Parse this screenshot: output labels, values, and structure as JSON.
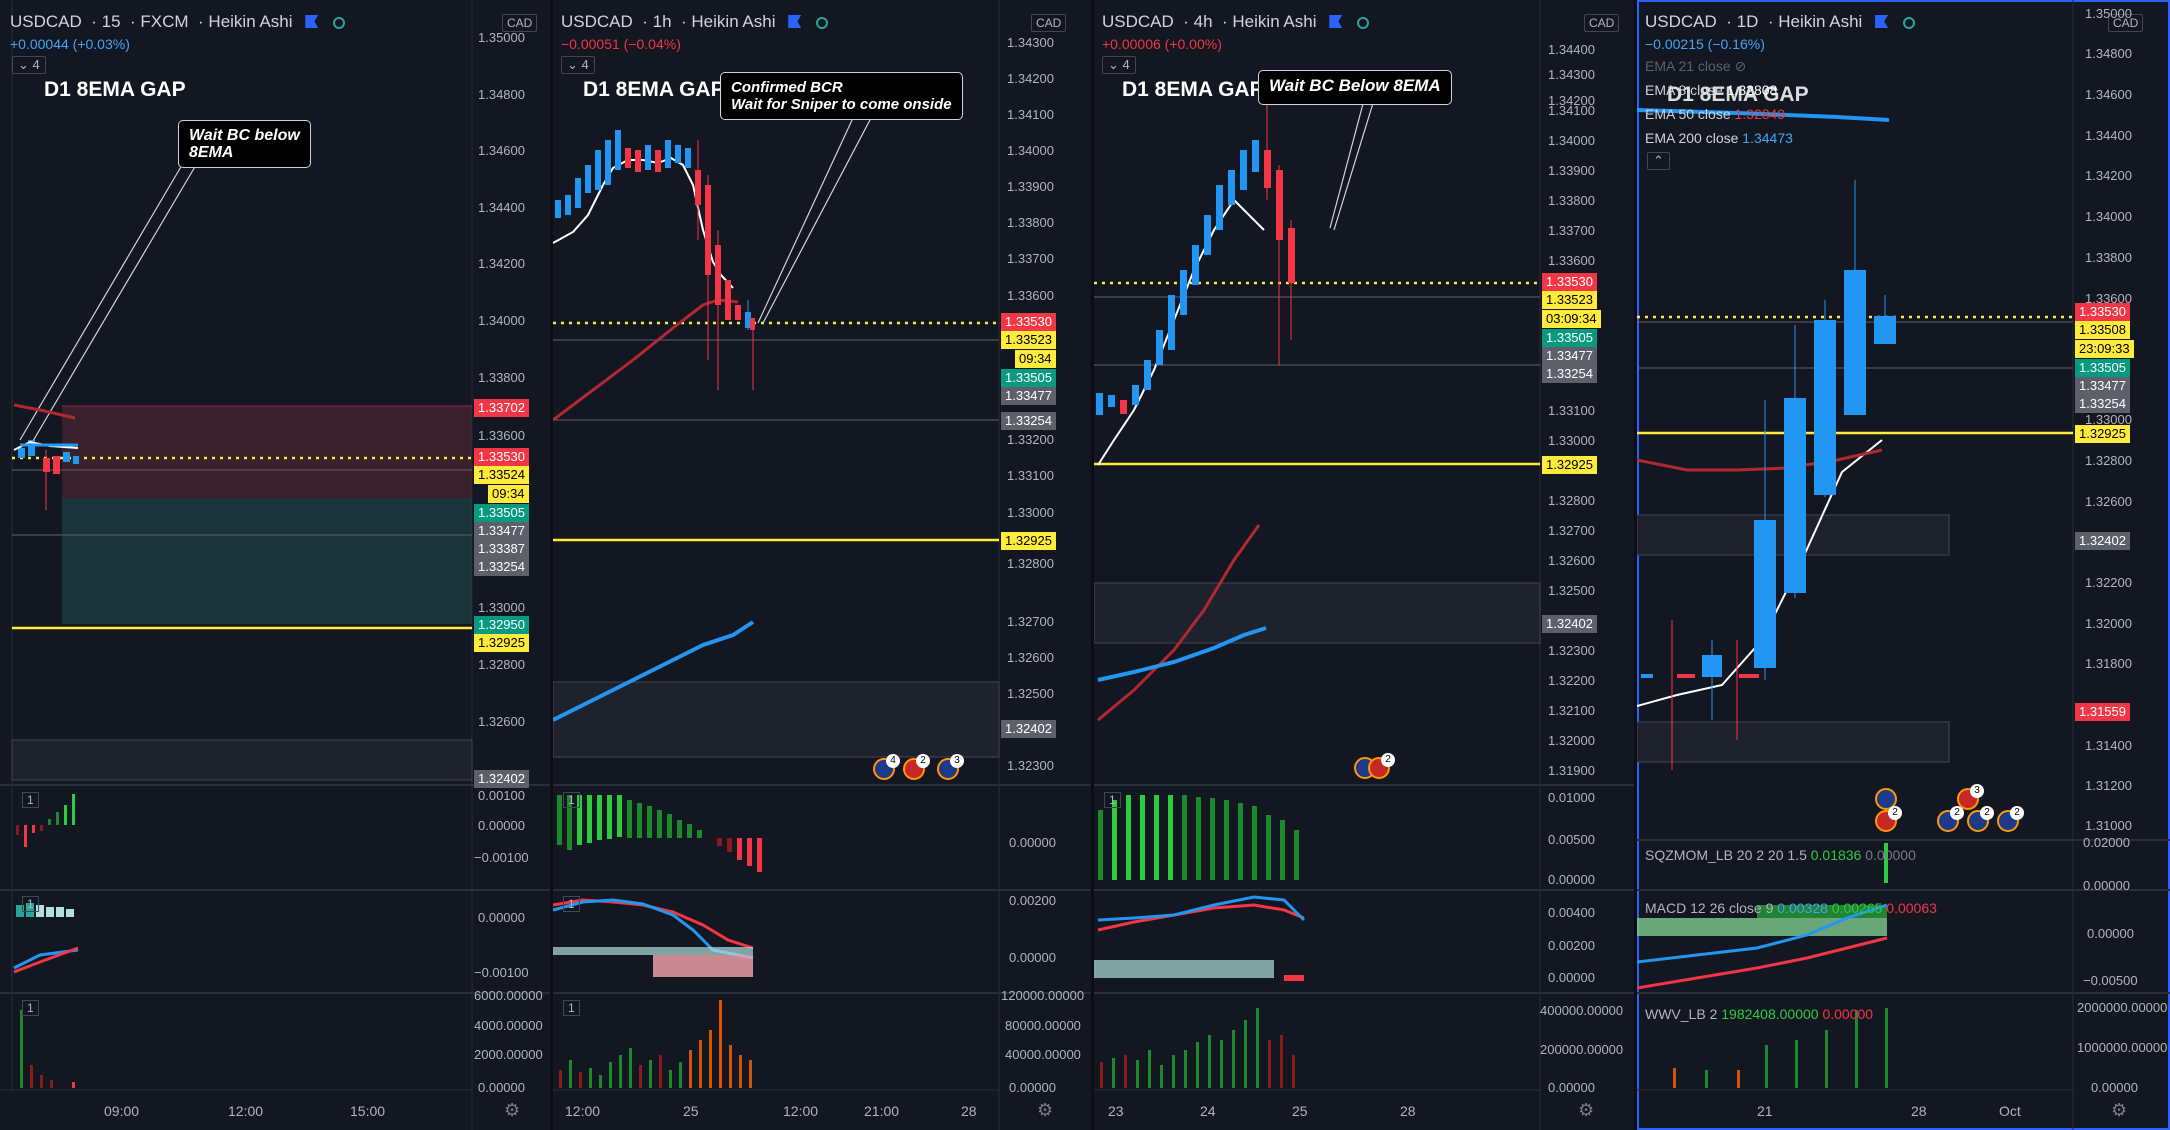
{
  "panels": [
    {
      "symbol": "USDCAD",
      "interval": "15",
      "source": "FXCM",
      "chart_type": "Heikin Ashi",
      "change": "+0.00044 (+0.03%)",
      "change_color": "#42a5f5",
      "collapse": "4",
      "gap_label": "D1  8EMA GAP",
      "callout": [
        "Wait BC below",
        "8EMA"
      ],
      "currency": "CAD",
      "price_ticks": [
        "1.35000",
        "1.34800",
        "1.34600",
        "1.34400",
        "1.34200",
        "1.34000",
        "1.33800",
        "1.33600",
        "1.33000",
        "1.32800",
        "1.32600"
      ],
      "price_labels": [
        {
          "text": "1.33702",
          "bg": "#f23645",
          "fg": "#ffffff"
        },
        {
          "text": "1.33530",
          "bg": "#f23645",
          "fg": "#ffffff"
        },
        {
          "text": "1.33524",
          "bg": "#ffeb3b",
          "fg": "#000000"
        },
        {
          "text": "09:34",
          "bg": "#ffeb3b",
          "fg": "#000000"
        },
        {
          "text": "1.33505",
          "bg": "#089981",
          "fg": "#ffffff"
        },
        {
          "text": "1.33477",
          "bg": "#5d606b",
          "fg": "#ffffff"
        },
        {
          "text": "1.33387",
          "bg": "#5d606b",
          "fg": "#ffffff"
        },
        {
          "text": "1.33254",
          "bg": "#5d606b",
          "fg": "#ffffff"
        },
        {
          "text": "1.32950",
          "bg": "#089981",
          "fg": "#ffffff"
        },
        {
          "text": "1.32925",
          "bg": "#ffeb3b",
          "fg": "#000000"
        },
        {
          "text": "1.32402",
          "bg": "#5d606b",
          "fg": "#ffffff"
        }
      ],
      "pane_ticks": [
        [
          "0.00100",
          "0.00000",
          "−0.00100"
        ],
        [
          "0.00000",
          "−0.00100"
        ],
        [
          "6000.00000",
          "4000.00000",
          "2000.00000",
          "0.00000"
        ]
      ],
      "time_labels": [
        "09:00",
        "12:00",
        "15:00"
      ]
    },
    {
      "symbol": "USDCAD",
      "interval": "1h",
      "chart_type": "Heikin Ashi",
      "change": "−0.00051 (−0.04%)",
      "change_color": "#f23645",
      "collapse": "4",
      "gap_label": "D1  8EMA GAP",
      "callout": [
        "Confirmed BCR",
        "Wait for Sniper to come onside"
      ],
      "currency": "CAD",
      "price_ticks": [
        "1.34300",
        "1.34200",
        "1.34100",
        "1.34000",
        "1.33900",
        "1.33800",
        "1.33700",
        "1.33600",
        "1.33200",
        "1.33100",
        "1.33000",
        "1.32800",
        "1.32700",
        "1.32600",
        "1.32500",
        "1.32300"
      ],
      "price_labels": [
        {
          "text": "1.33530",
          "bg": "#f23645",
          "fg": "#ffffff"
        },
        {
          "text": "1.33523",
          "bg": "#ffeb3b",
          "fg": "#000000"
        },
        {
          "text": "09:34",
          "bg": "#ffeb3b",
          "fg": "#000000"
        },
        {
          "text": "1.33505",
          "bg": "#089981",
          "fg": "#ffffff"
        },
        {
          "text": "1.33477",
          "bg": "#5d606b",
          "fg": "#ffffff"
        },
        {
          "text": "1.33254",
          "bg": "#5d606b",
          "fg": "#ffffff"
        },
        {
          "text": "1.32925",
          "bg": "#ffeb3b",
          "fg": "#000000"
        },
        {
          "text": "1.32402",
          "bg": "#5d606b",
          "fg": "#ffffff"
        }
      ],
      "pane_ticks": [
        [
          "0.00000"
        ],
        [
          "0.00200",
          "0.00000"
        ],
        [
          "120000.00000",
          "80000.00000",
          "40000.00000",
          "0.00000"
        ]
      ],
      "time_labels": [
        "12:00",
        "25",
        "12:00",
        "21:00",
        "28"
      ]
    },
    {
      "symbol": "USDCAD",
      "interval": "4h",
      "chart_type": "Heikin Ashi",
      "change": "+0.00006 (+0.00%)",
      "change_color": "#f23645",
      "collapse": "4",
      "gap_label": "D1  8EMA GAP",
      "callout": [
        "Wait BC Below 8EMA"
      ],
      "currency": "CAD",
      "price_ticks": [
        "1.34400",
        "1.34300",
        "1.34200",
        "1.34100",
        "1.34000",
        "1.33900",
        "1.33800",
        "1.33700",
        "1.33600",
        "1.33100",
        "1.33000",
        "1.32800",
        "1.32700",
        "1.32600",
        "1.32500",
        "1.32300",
        "1.32200",
        "1.32100",
        "1.32000",
        "1.31900"
      ],
      "price_labels": [
        {
          "text": "1.33530",
          "bg": "#f23645",
          "fg": "#ffffff"
        },
        {
          "text": "1.33523",
          "bg": "#ffeb3b",
          "fg": "#000000"
        },
        {
          "text": "03:09:34",
          "bg": "#ffeb3b",
          "fg": "#000000"
        },
        {
          "text": "1.33505",
          "bg": "#089981",
          "fg": "#ffffff"
        },
        {
          "text": "1.33477",
          "bg": "#5d606b",
          "fg": "#ffffff"
        },
        {
          "text": "1.33254",
          "bg": "#5d606b",
          "fg": "#ffffff"
        },
        {
          "text": "1.32925",
          "bg": "#ffeb3b",
          "fg": "#000000"
        },
        {
          "text": "1.32402",
          "bg": "#5d606b",
          "fg": "#ffffff"
        }
      ],
      "pane_ticks": [
        [
          "0.01000",
          "0.00500",
          "0.00000"
        ],
        [
          "0.00400",
          "0.00200",
          "0.00000"
        ],
        [
          "400000.00000",
          "200000.00000",
          "0.00000"
        ]
      ],
      "time_labels": [
        "23",
        "24",
        "25",
        "28"
      ]
    },
    {
      "symbol": "USDCAD",
      "interval": "1D",
      "chart_type": "Heikin Ashi",
      "change": "−0.00215 (−0.16%)",
      "change_color": "#42a5f5",
      "gap_label": "D1  8EMA GAP",
      "ema_legend": [
        {
          "name": "EMA 21 close",
          "value": "",
          "color": "#5d606b"
        },
        {
          "name": "EMA 8 close",
          "value": "1.32808",
          "color": "#ffffff"
        },
        {
          "name": "EMA 50 close",
          "value": "1.32849",
          "color": "#f23645"
        },
        {
          "name": "EMA 200 close",
          "value": "1.34473",
          "color": "#42a5f5"
        }
      ],
      "currency": "CAD",
      "price_ticks": [
        "1.35000",
        "1.34800",
        "1.34600",
        "1.34400",
        "1.34200",
        "1.34000",
        "1.33800",
        "1.33600",
        "1.33000",
        "1.32800",
        "1.32600",
        "1.32200",
        "1.32000",
        "1.31800",
        "1.31400",
        "1.31200",
        "1.31000"
      ],
      "price_labels": [
        {
          "text": "1.33530",
          "bg": "#f23645",
          "fg": "#ffffff"
        },
        {
          "text": "1.33508",
          "bg": "#ffeb3b",
          "fg": "#000000"
        },
        {
          "text": "23:09:33",
          "bg": "#ffeb3b",
          "fg": "#000000"
        },
        {
          "text": "1.33505",
          "bg": "#089981",
          "fg": "#ffffff"
        },
        {
          "text": "1.33477",
          "bg": "#5d606b",
          "fg": "#ffffff"
        },
        {
          "text": "1.33254",
          "bg": "#5d606b",
          "fg": "#ffffff"
        },
        {
          "text": "1.32925",
          "bg": "#ffeb3b",
          "fg": "#000000"
        },
        {
          "text": "1.32402",
          "bg": "#5d606b",
          "fg": "#ffffff"
        },
        {
          "text": "1.31559",
          "bg": "#f23645",
          "fg": "#ffffff"
        }
      ],
      "sqz_legend": {
        "name": "SQZMOM_LB 20 2 20 1.5",
        "v1": "0.01836",
        "v2": "0.00000"
      },
      "macd_legend": {
        "name": "MACD 12 26 close 9",
        "v1": "0.00328",
        "v2": "0.00265",
        "v3": "0.00063"
      },
      "wvw_legend": {
        "name": "WWV_LB 2",
        "v1": "1982408.00000",
        "v2": "0.00000"
      },
      "pane_ticks": [
        [
          "0.02000",
          "0.00000"
        ],
        [
          "0.00000",
          "−0.00500"
        ],
        [
          "2000000.00000",
          "1000000.00000",
          "0.00000"
        ]
      ],
      "time_labels": [
        "21",
        "28",
        "Oct"
      ]
    }
  ],
  "pane_index": "1"
}
